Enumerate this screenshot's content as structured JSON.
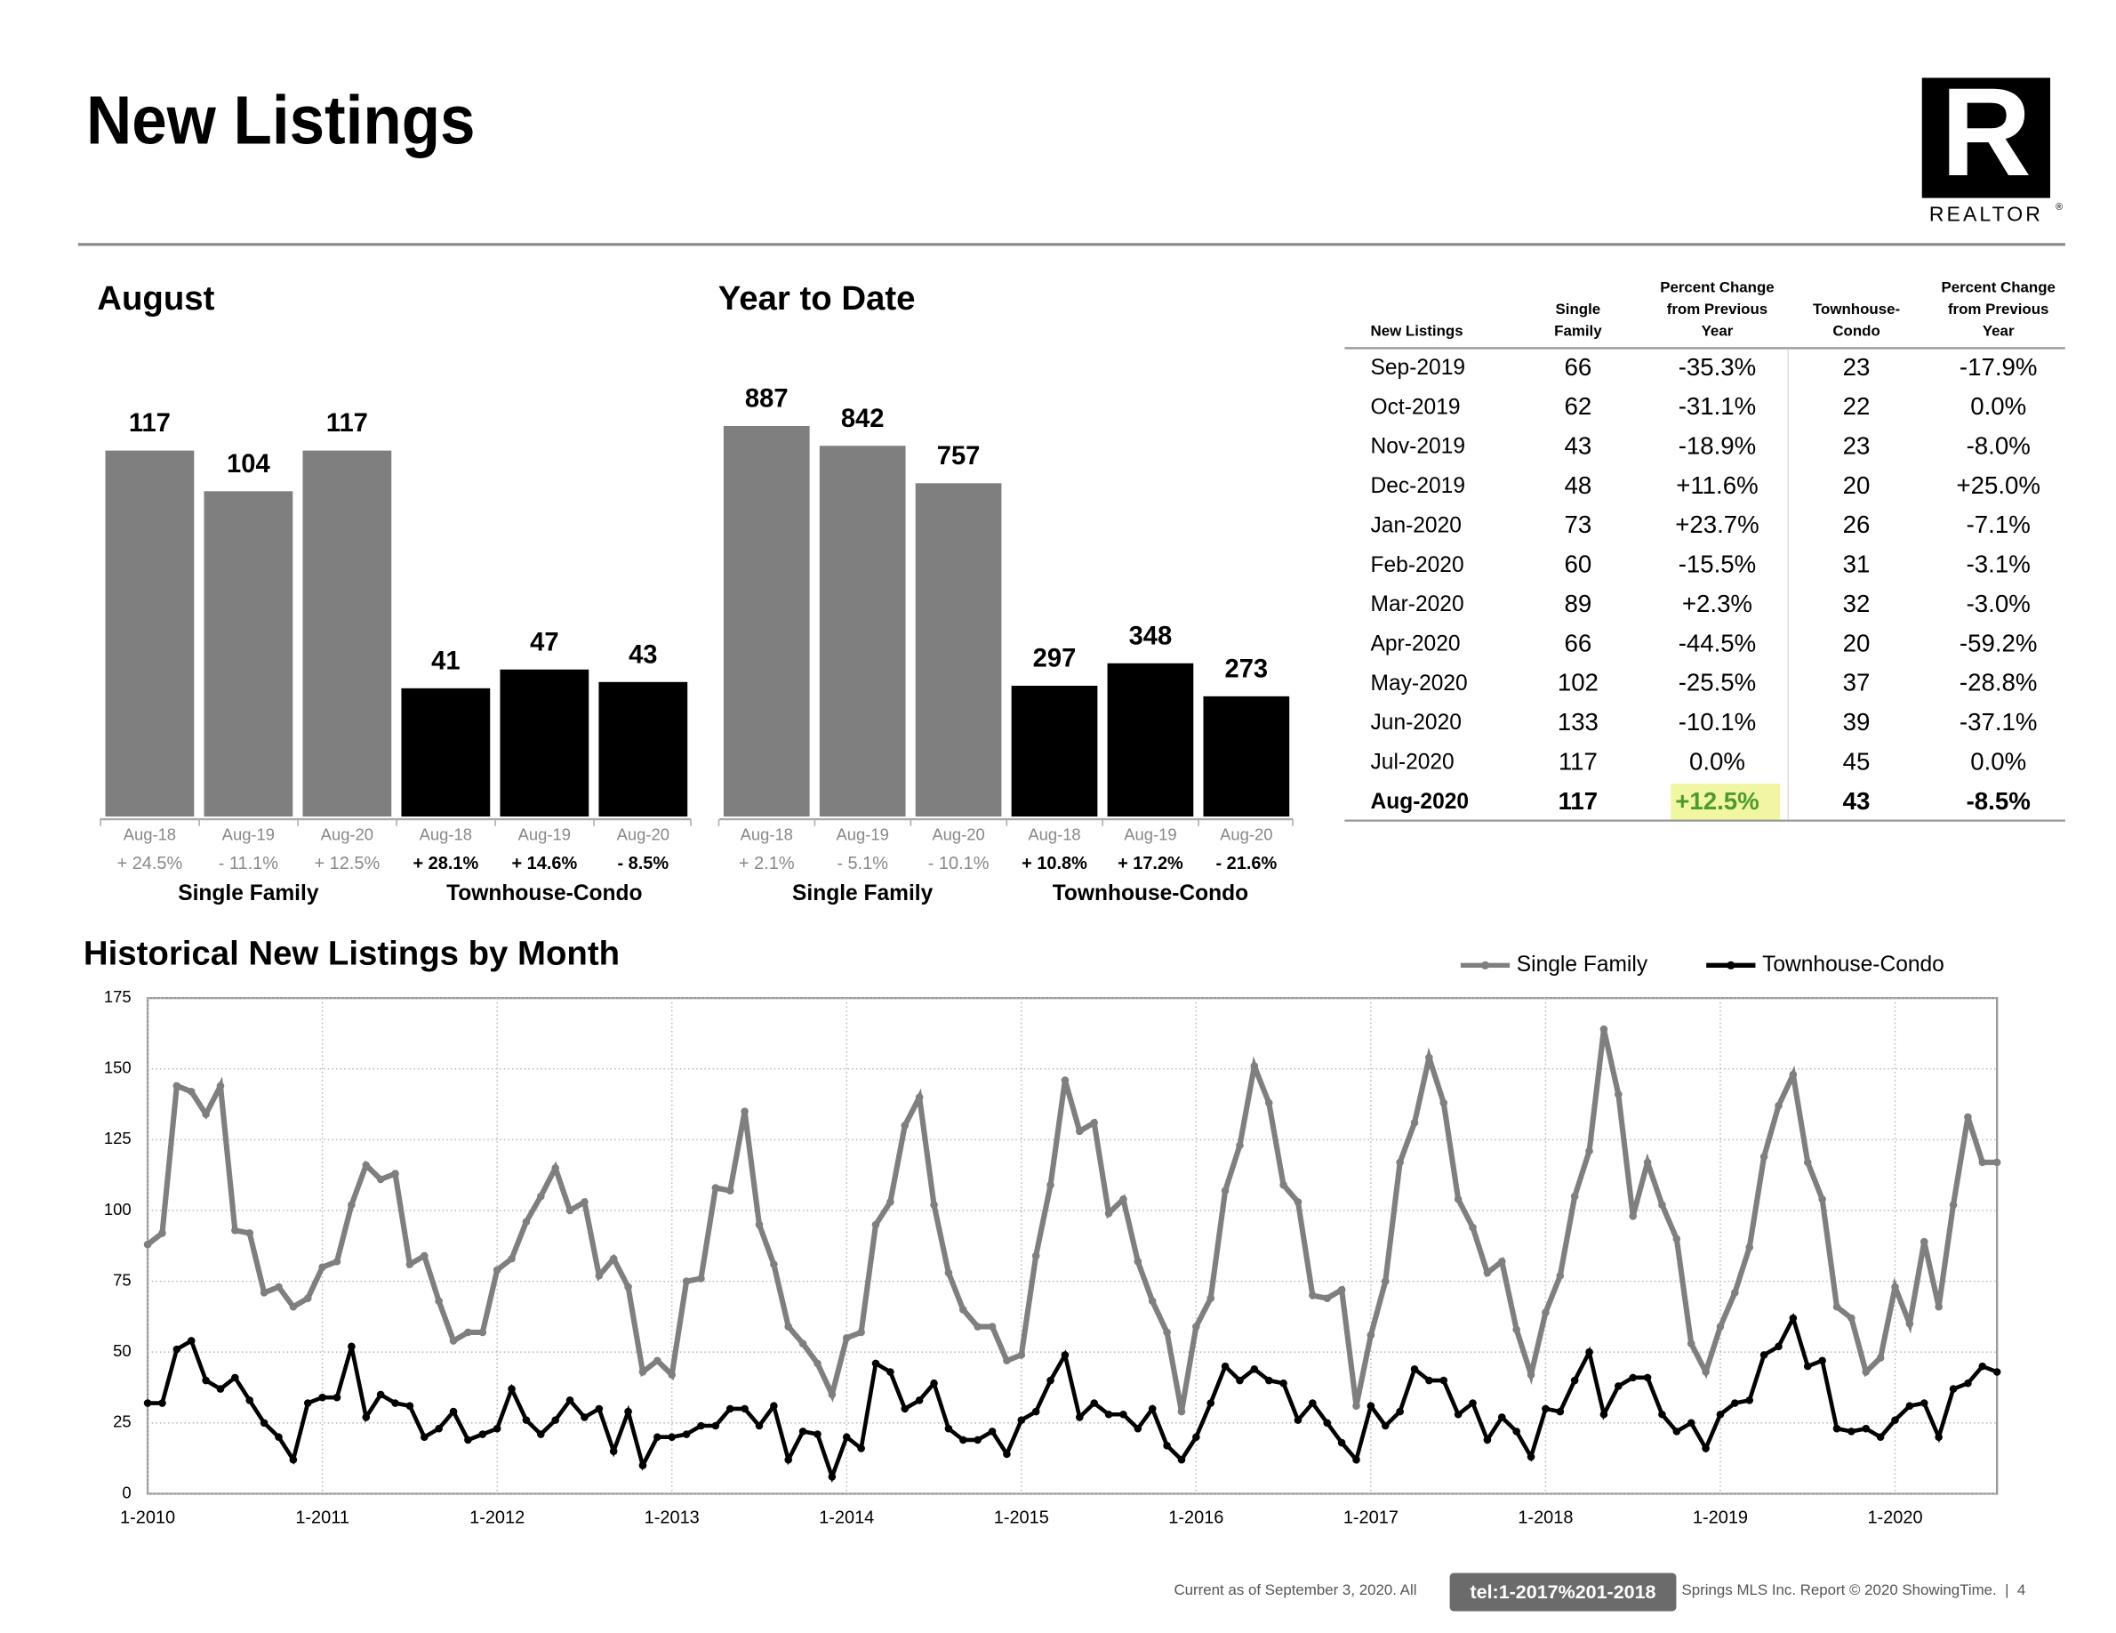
{
  "header": {
    "title": "New Listings"
  },
  "logo": {
    "letter": "R",
    "text": "REALTOR",
    "mark": "®"
  },
  "chart_data": [
    {
      "type": "bar",
      "title": "August",
      "categories": [
        "Aug-18",
        "Aug-19",
        "Aug-20"
      ],
      "series": [
        {
          "name": "Single Family",
          "color": "#7f7f7f",
          "values": [
            117,
            104,
            117
          ],
          "change_labels": [
            "+ 24.5%",
            "- 11.1%",
            "+ 12.5%"
          ]
        },
        {
          "name": "Townhouse-Condo",
          "color": "#000000",
          "values": [
            41,
            47,
            43
          ],
          "change_labels": [
            "+ 28.1%",
            "+ 14.6%",
            "- 8.5%"
          ]
        }
      ]
    },
    {
      "type": "bar",
      "title": "Year to Date",
      "categories": [
        "Aug-18",
        "Aug-19",
        "Aug-20"
      ],
      "series": [
        {
          "name": "Single Family",
          "color": "#7f7f7f",
          "values": [
            887,
            842,
            757
          ],
          "change_labels": [
            "+ 2.1%",
            "- 5.1%",
            "- 10.1%"
          ]
        },
        {
          "name": "Townhouse-Condo",
          "color": "#000000",
          "values": [
            297,
            348,
            273
          ],
          "change_labels": [
            "+ 10.8%",
            "+ 17.2%",
            "- 21.6%"
          ]
        }
      ]
    },
    {
      "type": "line",
      "title": "Historical New Listings by Month",
      "categories": [
        "1-2010",
        null,
        null,
        null,
        null,
        null,
        null,
        null,
        null,
        null,
        null,
        null,
        "1-2011",
        null,
        null,
        null,
        null,
        null,
        null,
        null,
        null,
        null,
        null,
        null,
        "1-2012",
        null,
        null,
        null,
        null,
        null,
        null,
        null,
        null,
        null,
        null,
        null,
        "1-2013",
        null,
        null,
        null,
        null,
        null,
        null,
        null,
        null,
        null,
        null,
        null,
        "1-2014",
        null,
        null,
        null,
        null,
        null,
        null,
        null,
        null,
        null,
        null,
        null,
        "1-2015",
        null,
        null,
        null,
        null,
        null,
        null,
        null,
        null,
        null,
        null,
        null,
        "1-2016",
        null,
        null,
        null,
        null,
        null,
        null,
        null,
        null,
        null,
        null,
        null,
        "1-2017",
        null,
        null,
        null,
        null,
        null,
        null,
        null,
        null,
        null,
        null,
        null,
        "1-2018",
        null,
        null,
        null,
        null,
        null,
        null,
        null,
        null,
        null,
        null,
        null,
        "1-2019",
        null,
        null,
        null,
        null,
        null,
        null,
        null,
        null,
        null,
        null,
        null,
        "1-2020",
        null,
        null,
        null,
        null,
        null,
        null,
        null
      ],
      "series": [
        {
          "name": "Single Family",
          "color": "#7f7f7f",
          "values": [
            88,
            92,
            144,
            142,
            134,
            144,
            93,
            92,
            71,
            73,
            66,
            69,
            80,
            82,
            102,
            116,
            111,
            113,
            81,
            84,
            68,
            54,
            57,
            57,
            79,
            83,
            96,
            105,
            115,
            100,
            103,
            77,
            83,
            73,
            43,
            47,
            42,
            75,
            76,
            108,
            107,
            135,
            95,
            81,
            59,
            53,
            46,
            35,
            55,
            57,
            95,
            103,
            130,
            140,
            102,
            78,
            65,
            59,
            59,
            47,
            49,
            84,
            109,
            146,
            128,
            131,
            99,
            104,
            82,
            68,
            57,
            29,
            59,
            69,
            107,
            123,
            151,
            138,
            109,
            103,
            70,
            69,
            72,
            31,
            56,
            75,
            117,
            131,
            154,
            138,
            104,
            94,
            78,
            82,
            58,
            42,
            64,
            77,
            105,
            121,
            164,
            141,
            98,
            117,
            102,
            90,
            53,
            43,
            59,
            71,
            87,
            119,
            137,
            148,
            117,
            104,
            66,
            62,
            43,
            48,
            73,
            60,
            89,
            66,
            102,
            133,
            117,
            117
          ]
        },
        {
          "name": "Townhouse-Condo",
          "color": "#000000",
          "values": [
            32,
            32,
            51,
            54,
            40,
            37,
            41,
            33,
            25,
            20,
            12,
            32,
            34,
            34,
            52,
            27,
            35,
            32,
            31,
            20,
            23,
            29,
            19,
            21,
            23,
            37,
            26,
            21,
            26,
            33,
            27,
            30,
            15,
            29,
            10,
            20,
            20,
            21,
            24,
            24,
            30,
            30,
            24,
            31,
            12,
            22,
            21,
            6,
            20,
            16,
            46,
            43,
            30,
            33,
            39,
            23,
            19,
            19,
            22,
            14,
            26,
            29,
            40,
            49,
            27,
            32,
            28,
            28,
            23,
            30,
            17,
            12,
            20,
            32,
            45,
            40,
            44,
            40,
            39,
            26,
            32,
            25,
            18,
            12,
            31,
            24,
            29,
            44,
            40,
            40,
            28,
            32,
            19,
            27,
            22,
            13,
            30,
            29,
            40,
            50,
            28,
            38,
            41,
            41,
            28,
            22,
            25,
            16,
            28,
            32,
            33,
            49,
            52,
            62,
            45,
            47,
            23,
            22,
            23,
            20,
            26,
            31,
            32,
            20,
            37,
            39,
            45,
            43
          ]
        }
      ],
      "ylim": [
        0,
        175
      ],
      "yticks": [
        0,
        25,
        50,
        75,
        100,
        125,
        150,
        175
      ],
      "grid": true,
      "legend": "top-right"
    }
  ],
  "table": {
    "headers": [
      [
        "New Listings"
      ],
      [
        "Single",
        "Family"
      ],
      [
        "Percent Change",
        "from Previous",
        "Year"
      ],
      [
        "Townhouse-",
        "Condo"
      ],
      [
        "Percent Change",
        "from Previous",
        "Year"
      ]
    ],
    "rows": [
      [
        "Sep-2019",
        66,
        "-35.3%",
        23,
        "-17.9%"
      ],
      [
        "Oct-2019",
        62,
        "-31.1%",
        22,
        "0.0%"
      ],
      [
        "Nov-2019",
        43,
        "-18.9%",
        23,
        "-8.0%"
      ],
      [
        "Dec-2019",
        48,
        "+11.6%",
        20,
        "+25.0%"
      ],
      [
        "Jan-2020",
        73,
        "+23.7%",
        26,
        "-7.1%"
      ],
      [
        "Feb-2020",
        60,
        "-15.5%",
        31,
        "-3.1%"
      ],
      [
        "Mar-2020",
        89,
        "+2.3%",
        32,
        "-3.0%"
      ],
      [
        "Apr-2020",
        66,
        "-44.5%",
        20,
        "-59.2%"
      ],
      [
        "May-2020",
        102,
        "-25.5%",
        37,
        "-28.8%"
      ],
      [
        "Jun-2020",
        133,
        "-10.1%",
        39,
        "-37.1%"
      ],
      [
        "Jul-2020",
        117,
        "0.0%",
        45,
        "0.0%"
      ],
      [
        "Aug-2020",
        117,
        "+12.5%",
        43,
        "-8.5%"
      ]
    ]
  },
  "footer": {
    "left": "Current as of September 3, 2020. All",
    "right": "Springs MLS Inc. Report © 2020 ShowingTime.  |  4",
    "tooltip": "tel:1-2017%201-2018"
  }
}
